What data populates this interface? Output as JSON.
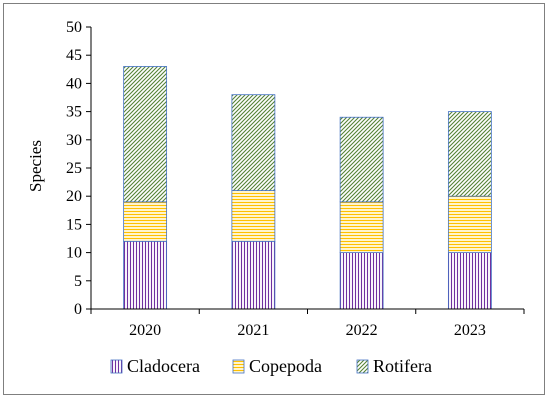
{
  "chart_data": {
    "type": "bar",
    "stacked": true,
    "categories": [
      "2020",
      "2021",
      "2022",
      "2023"
    ],
    "series": [
      {
        "name": "Cladocera",
        "values": [
          12,
          12,
          10,
          10
        ],
        "color": "#7030a0",
        "pattern": "vertical-lines"
      },
      {
        "name": "Copepoda",
        "values": [
          7,
          9,
          9,
          10
        ],
        "color": "#ffc000",
        "pattern": "horizontal-lines"
      },
      {
        "name": "Rotifera",
        "values": [
          24,
          17,
          15,
          15
        ],
        "color": "#548235",
        "pattern": "diagonal-lines"
      }
    ],
    "ylabel": "Species",
    "xlabel": "",
    "ylim": [
      0,
      50
    ],
    "yticks": [
      0,
      5,
      10,
      15,
      20,
      25,
      30,
      35,
      40,
      45,
      50
    ],
    "grid": false,
    "legend": "bottom"
  }
}
